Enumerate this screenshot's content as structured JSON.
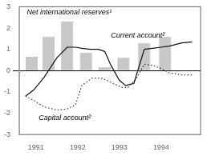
{
  "chart_data": {
    "type": "bar",
    "xlim": [
      1990.6,
      1994.95
    ],
    "xticks": [
      1991,
      1992,
      1993,
      1994
    ],
    "ylim": [
      -3,
      3
    ],
    "yticks": [
      -3,
      -2,
      -1,
      0,
      1,
      2,
      3
    ],
    "grid": false,
    "series": [
      {
        "name": "Net international reserves¹",
        "type": "bar",
        "color": "#c8c8c8",
        "x": [
          1990.9,
          1991.3,
          1991.75,
          1992.2,
          1992.65,
          1993.1,
          1993.6,
          1994.1
        ],
        "values": [
          0.65,
          1.6,
          2.3,
          0.85,
          0.15,
          0.6,
          1.3,
          1.6
        ]
      },
      {
        "name": "Current account²",
        "type": "line",
        "color": "#111111",
        "line_style": "solid",
        "x": [
          1990.75,
          1990.95,
          1991.2,
          1991.5,
          1991.75,
          1991.95,
          1992.1,
          1992.3,
          1992.5,
          1992.65,
          1992.8,
          1993.0,
          1993.15,
          1993.35,
          1993.6,
          1993.8,
          1994.0,
          1994.2,
          1994.5,
          1994.75
        ],
        "values": [
          -1.2,
          -0.9,
          -0.3,
          0.6,
          1.1,
          1.1,
          1.05,
          1.0,
          1.0,
          0.9,
          0.25,
          -0.45,
          -0.7,
          -0.6,
          1.0,
          1.05,
          1.1,
          1.15,
          1.3,
          1.35
        ]
      },
      {
        "name": "Capital account²",
        "type": "line",
        "color": "#333333",
        "line_style": "dotted",
        "x": [
          1990.75,
          1990.95,
          1991.2,
          1991.5,
          1991.75,
          1991.95,
          1992.1,
          1992.35,
          1992.55,
          1992.7,
          1992.9,
          1993.05,
          1993.2,
          1993.4,
          1993.6,
          1993.8,
          1994.0,
          1994.2,
          1994.5,
          1994.75
        ],
        "values": [
          -1.2,
          -1.4,
          -1.7,
          -1.85,
          -1.8,
          -1.6,
          -0.7,
          -0.35,
          -0.35,
          -0.45,
          -0.65,
          -0.78,
          -0.8,
          -0.4,
          0.3,
          0.25,
          0.1,
          -0.1,
          -0.2,
          -0.2
        ]
      }
    ]
  }
}
